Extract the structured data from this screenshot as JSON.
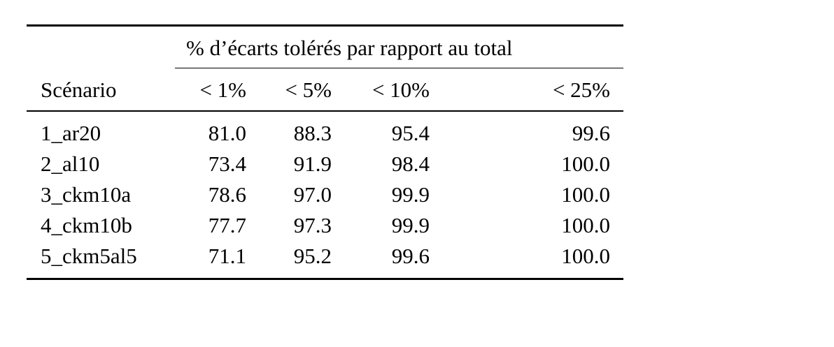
{
  "table": {
    "group_header": "% d’écarts tolérés par rapport au total",
    "columns": [
      "Scénario",
      "< 1%",
      "< 5%",
      "< 10%",
      "< 25%"
    ],
    "rows": [
      [
        "1_ar20",
        "81.0",
        "88.3",
        "95.4",
        "99.6"
      ],
      [
        "2_al10",
        "73.4",
        "91.9",
        "98.4",
        "100.0"
      ],
      [
        "3_ckm10a",
        "78.6",
        "97.0",
        "99.9",
        "100.0"
      ],
      [
        "4_ckm10b",
        "77.7",
        "97.3",
        "99.9",
        "100.0"
      ],
      [
        "5_ckm5al5",
        "71.1",
        "95.2",
        "99.6",
        "100.0"
      ]
    ]
  }
}
